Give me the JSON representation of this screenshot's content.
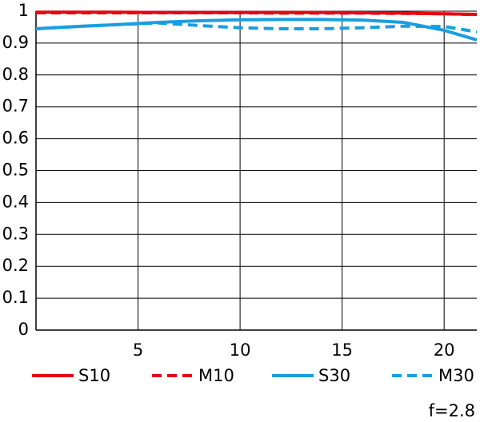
{
  "chart_data": {
    "type": "line",
    "annotation": "f=2.8",
    "x": [
      0,
      2,
      4,
      6,
      8,
      10,
      12,
      14,
      16,
      18,
      20,
      21.6
    ],
    "series": [
      {
        "name": "S10",
        "color": "#e30613",
        "dashed": false,
        "values": [
          0.997,
          0.997,
          0.997,
          0.996,
          0.996,
          0.996,
          0.996,
          0.996,
          0.995,
          0.994,
          0.992,
          0.99
        ]
      },
      {
        "name": "M10",
        "color": "#e30613",
        "dashed": true,
        "values": [
          0.995,
          0.995,
          0.995,
          0.995,
          0.995,
          0.995,
          0.994,
          0.994,
          0.994,
          0.993,
          0.992,
          0.989
        ]
      },
      {
        "name": "S30",
        "color": "#1a9ee0",
        "dashed": false,
        "values": [
          0.945,
          0.952,
          0.958,
          0.965,
          0.97,
          0.973,
          0.974,
          0.974,
          0.972,
          0.965,
          0.94,
          0.91
        ]
      },
      {
        "name": "M30",
        "color": "#1a9ee0",
        "dashed": true,
        "values": [
          0.945,
          0.952,
          0.958,
          0.963,
          0.955,
          0.948,
          0.945,
          0.945,
          0.948,
          0.953,
          0.952,
          0.935
        ]
      }
    ],
    "xlim": [
      0,
      21.6
    ],
    "ylim": [
      0,
      1
    ],
    "xticks": [
      5,
      10,
      15,
      20
    ],
    "yticks": [
      0,
      0.1,
      0.2,
      0.3,
      0.4,
      0.5,
      0.6,
      0.7,
      0.8,
      0.9,
      1
    ],
    "grid": true
  }
}
